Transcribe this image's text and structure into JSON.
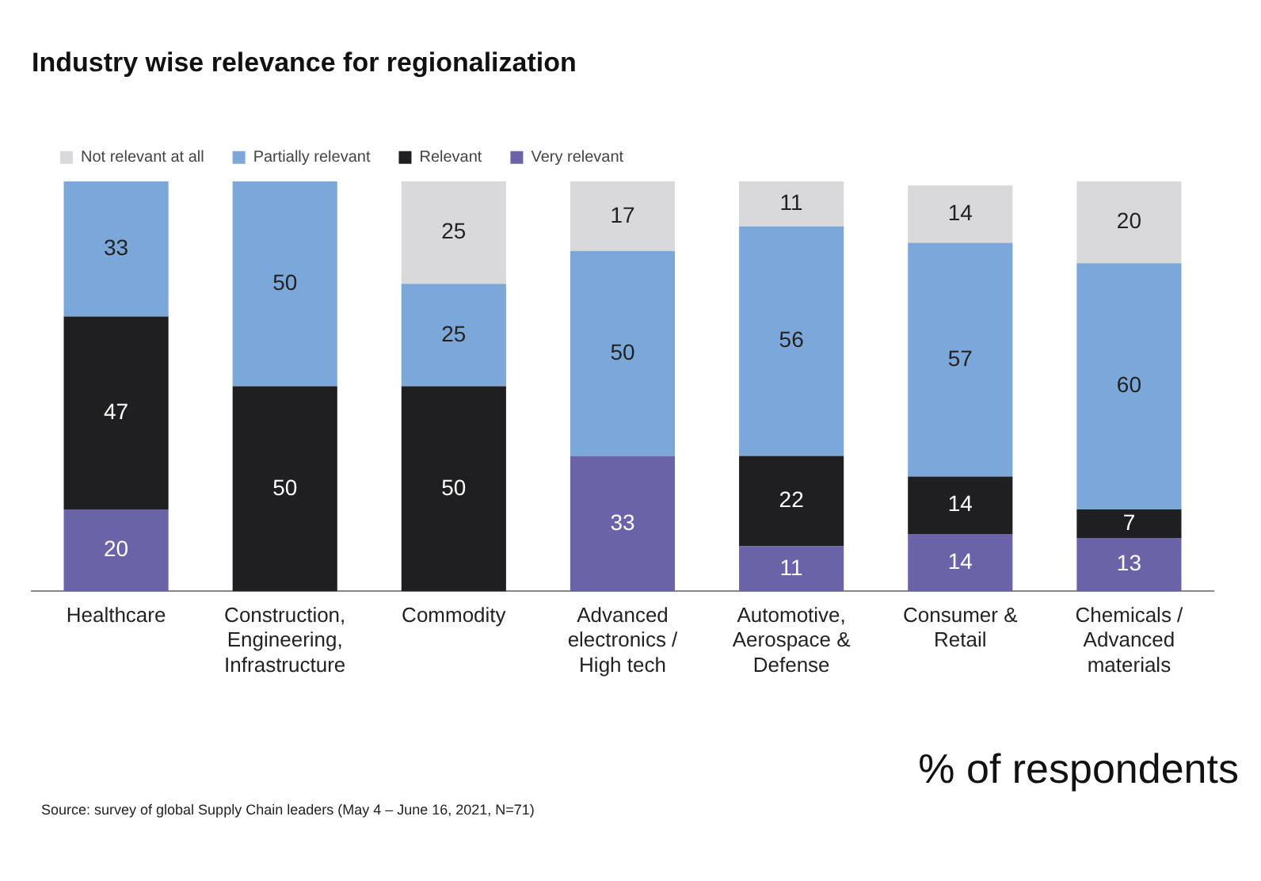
{
  "chart_data": {
    "type": "bar",
    "title": "Industry wise relevance for regionalization",
    "stacked": true,
    "data_labels": true,
    "legend": "top left",
    "grid": false,
    "tick_labels": "x",
    "ylim": [
      0,
      100
    ],
    "categories": [
      "Healthcare",
      "Construction, Engineering, Infrastructure",
      "Commodity",
      "Advanced electronics / High tech",
      "Automotive, Aerospace & Defense",
      "Consumer & Retail",
      "Chemicals / Advanced materials"
    ],
    "series": [
      {
        "name": "Very relevant",
        "color": "#6a63a8",
        "values": [
          20,
          null,
          null,
          33,
          11,
          14,
          13
        ]
      },
      {
        "name": "Relevant",
        "color": "#1f1f22",
        "values": [
          47,
          50,
          50,
          null,
          22,
          14,
          7
        ]
      },
      {
        "name": "Partially relevant",
        "color": "#7ba7d9",
        "values": [
          33,
          50,
          25,
          50,
          56,
          57,
          60
        ]
      },
      {
        "name": "Not relevant at all",
        "color": "#d9d9dc",
        "values": [
          null,
          null,
          25,
          17,
          11,
          14,
          20
        ]
      }
    ],
    "annotations": [
      "% of respondents",
      "Source: survey of global Supply Chain leaders (May 4 – June 16, 2021, N=71)"
    ]
  }
}
